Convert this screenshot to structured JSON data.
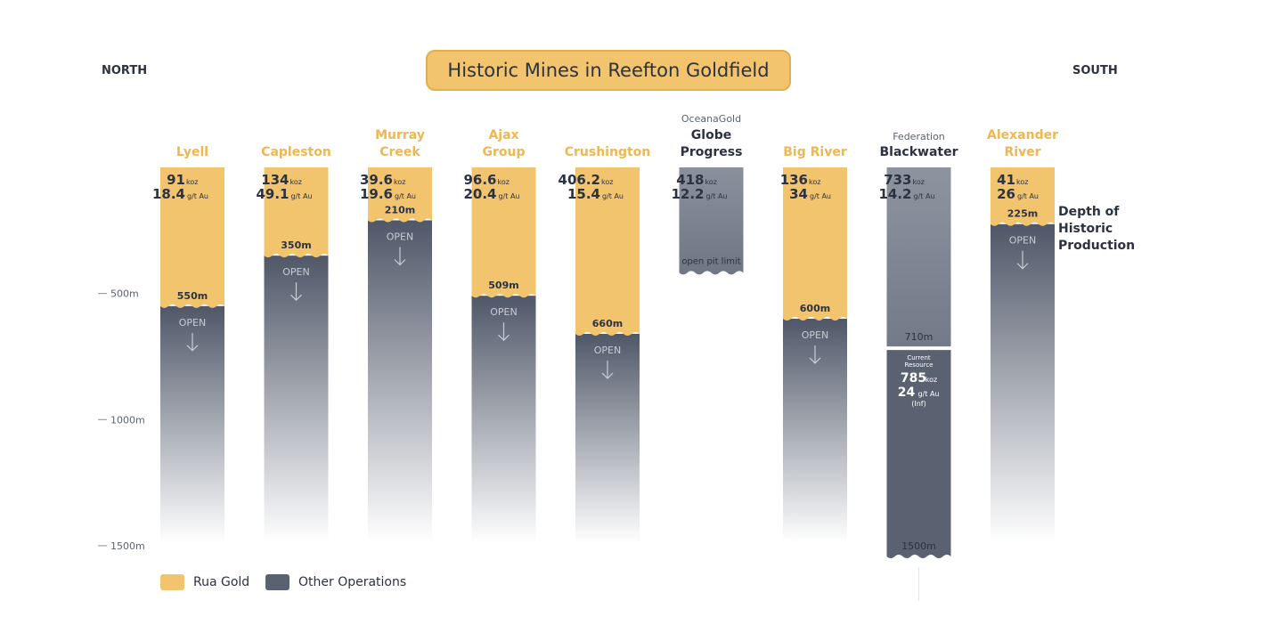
{
  "title": "Historic Mines in Reefton Goldfield",
  "north_label": "NORTH",
  "south_label": "SOUTH",
  "depth_note": [
    "Depth of",
    "Historic",
    "Production"
  ],
  "colors": {
    "rua": "#f2c46d",
    "other": "#5a6272",
    "other_light": "#878e9c",
    "text": "#2b3242",
    "rua_text": "#efb752"
  },
  "legend": [
    {
      "label": "Rua Gold",
      "color": "#f2c46d"
    },
    {
      "label": "Other Operations",
      "color": "#5a6272"
    }
  ],
  "chart_data": {
    "type": "bar",
    "y_unit": "m",
    "y_ticks": [
      {
        "value": 500,
        "label": "500m"
      },
      {
        "value": 1000,
        "label": "1000m"
      },
      {
        "value": 1500,
        "label": "1500m"
      }
    ],
    "ylim": [
      0,
      1500
    ],
    "open_label": "OPEN",
    "mines": [
      {
        "name": [
          "Lyell"
        ],
        "operator": "Rua Gold",
        "depth": 550,
        "depth_label": "550m",
        "koz": "91",
        "grade": "18.4",
        "open": true
      },
      {
        "name": [
          "Capleston"
        ],
        "operator": "Rua Gold",
        "depth": 350,
        "depth_label": "350m",
        "koz": "134",
        "grade": "49.1",
        "open": true
      },
      {
        "name": [
          "Murray",
          "Creek"
        ],
        "operator": "Rua Gold",
        "depth": 210,
        "depth_label": "210m",
        "koz": "39.6",
        "grade": "19.6",
        "open": true
      },
      {
        "name": [
          "Ajax",
          "Group"
        ],
        "operator": "Rua Gold",
        "depth": 509,
        "depth_label": "509m",
        "koz": "96.6",
        "grade": "20.4",
        "open": true
      },
      {
        "name": [
          "Crushington"
        ],
        "operator": "Rua Gold",
        "depth": 660,
        "depth_label": "660m",
        "koz": "406.2",
        "grade": "15.4",
        "open": true
      },
      {
        "name": [
          "Globe",
          "Progress"
        ],
        "owner": "OceanaGold",
        "operator": "Other",
        "depth": 418,
        "depth_label": "open pit limit",
        "koz": "418",
        "grade": "12.2",
        "open": false
      },
      {
        "name": [
          "Big River"
        ],
        "operator": "Rua Gold",
        "depth": 600,
        "depth_label": "600m",
        "koz": "136",
        "grade": "34",
        "open": true
      },
      {
        "name": [
          "Blackwater"
        ],
        "owner": "Federation",
        "operator": "Other",
        "depth": 710,
        "depth_label": "710m",
        "koz": "733",
        "grade": "14.2",
        "open": false,
        "resource": {
          "label": [
            "Current",
            "Resource"
          ],
          "koz": "785",
          "grade": "24",
          "note": "(Inf)",
          "depth": 1500,
          "depth_label": "1500m"
        }
      },
      {
        "name": [
          "Alexander",
          "River"
        ],
        "operator": "Rua Gold",
        "depth": 225,
        "depth_label": "225m",
        "koz": "41",
        "grade": "26",
        "open": true
      }
    ],
    "units": {
      "koz": "koz",
      "grade": "g/t Au"
    }
  }
}
